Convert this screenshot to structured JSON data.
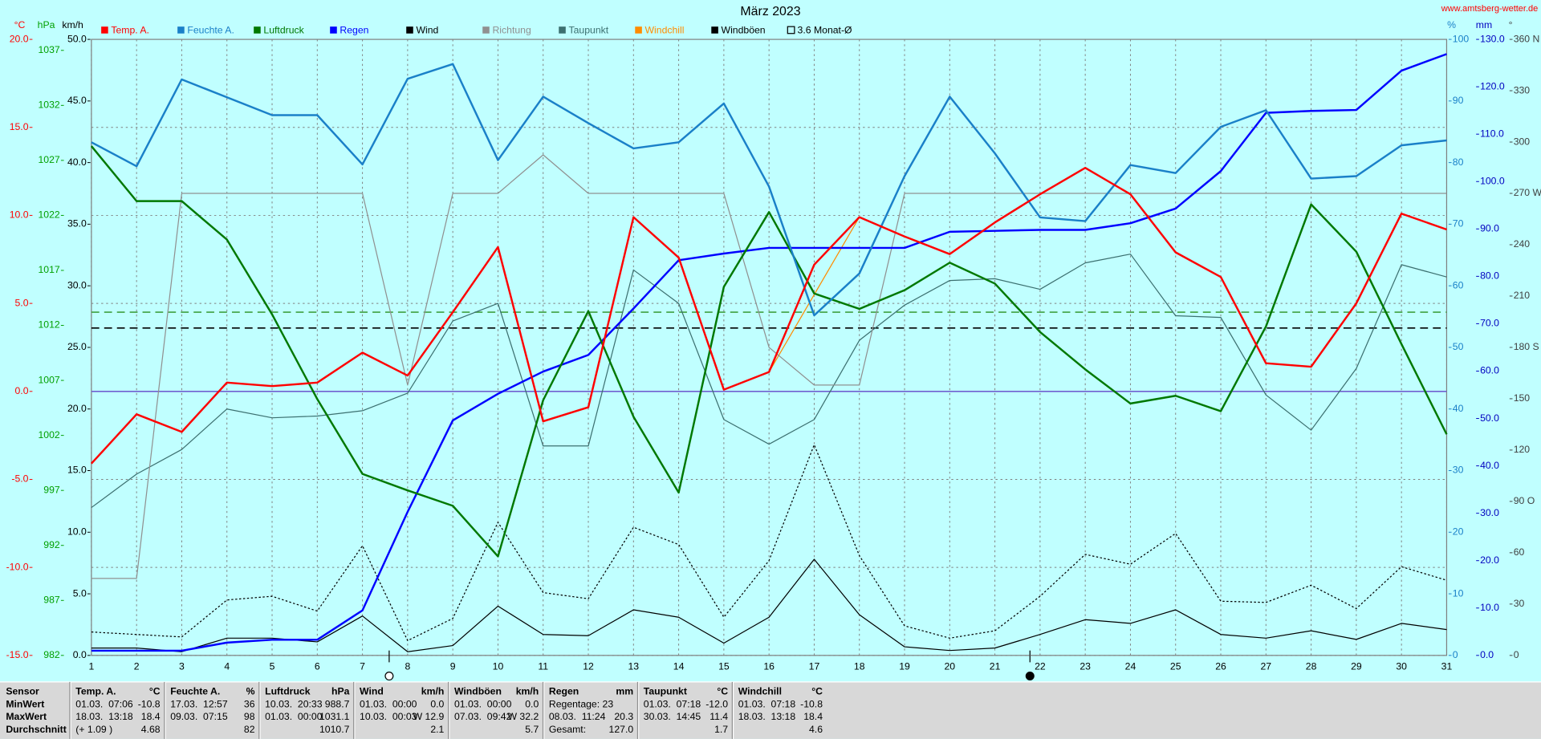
{
  "chart_data": {
    "type": "line",
    "title": "März 2023",
    "source": "www.amtsberg-wetter.de",
    "x": [
      1,
      2,
      3,
      4,
      5,
      6,
      7,
      8,
      9,
      10,
      11,
      12,
      13,
      14,
      15,
      16,
      17,
      18,
      19,
      20,
      21,
      22,
      23,
      24,
      25,
      26,
      27,
      28,
      29,
      30,
      31
    ],
    "xlim": [
      1,
      31
    ],
    "grid": true,
    "axes": [
      {
        "unit": "°C",
        "color": "#ff0000",
        "lim": [
          -15,
          20
        ],
        "ticks": [
          {
            "value": -15,
            "label": "-15.0"
          },
          {
            "value": -10,
            "label": "-10.0"
          },
          {
            "value": -5,
            "label": "-5.0"
          },
          {
            "value": 0,
            "label": "0.0"
          },
          {
            "value": 5,
            "label": "5.0"
          },
          {
            "value": 10,
            "label": "10.0"
          },
          {
            "value": 15,
            "label": "15.0"
          },
          {
            "value": 20,
            "label": "20.0"
          }
        ]
      },
      {
        "unit": "hPa",
        "color": "#00a000",
        "lim": [
          982,
          1038
        ],
        "ticks": [
          982,
          987,
          992,
          997,
          1002,
          1007,
          1012,
          1017,
          1022,
          1027,
          1032,
          1037
        ]
      },
      {
        "unit": "km/h",
        "color": "#000000",
        "lim": [
          0,
          50
        ],
        "ticks": [
          {
            "value": 0,
            "label": "0.0"
          },
          {
            "value": 5,
            "label": "5.0"
          },
          {
            "value": 10,
            "label": "10.0"
          },
          {
            "value": 15,
            "label": "15.0"
          },
          {
            "value": 20,
            "label": "20.0"
          },
          {
            "value": 25,
            "label": "25.0"
          },
          {
            "value": 30,
            "label": "30.0"
          },
          {
            "value": 35,
            "label": "35.0"
          },
          {
            "value": 40,
            "label": "40.0"
          },
          {
            "value": 45,
            "label": "45.0"
          },
          {
            "value": 50,
            "label": "50.0"
          }
        ]
      },
      {
        "unit": "%",
        "color": "#1a80c8",
        "lim": [
          0,
          100
        ],
        "ticks": [
          0,
          10,
          20,
          30,
          40,
          50,
          60,
          70,
          80,
          90,
          100
        ]
      },
      {
        "unit": "mm",
        "color": "#0000c0",
        "lim": [
          0,
          130
        ],
        "ticks": [
          {
            "value": 0,
            "label": "0.0"
          },
          {
            "value": 10,
            "label": "10.0"
          },
          {
            "value": 20,
            "label": "20.0"
          },
          {
            "value": 30,
            "label": "30.0"
          },
          {
            "value": 40,
            "label": "40.0"
          },
          {
            "value": 50,
            "label": "50.0"
          },
          {
            "value": 60,
            "label": "60.0"
          },
          {
            "value": 70,
            "label": "70.0"
          },
          {
            "value": 80,
            "label": "80.0"
          },
          {
            "value": 90,
            "label": "90.0"
          },
          {
            "value": 100,
            "label": "100.0"
          },
          {
            "value": 110,
            "label": "110.0"
          },
          {
            "value": 120,
            "label": "120.0"
          },
          {
            "value": 130,
            "label": "130.0"
          }
        ]
      },
      {
        "unit": "°",
        "color": "#404040",
        "lim": [
          0,
          360
        ],
        "ticks": [
          0,
          30,
          60,
          {
            "value": 90,
            "label": "90 O"
          },
          120,
          150,
          {
            "value": 180,
            "label": "180 S"
          },
          210,
          240,
          {
            "value": 270,
            "label": "270 W"
          },
          300,
          330,
          {
            "value": 360,
            "label": "360 N"
          }
        ]
      }
    ],
    "series": [
      {
        "name": "Temp. A.",
        "color": "#ff0000",
        "axis": 0,
        "values": [
          -4.1,
          -1.3,
          -2.3,
          0.5,
          0.3,
          0.5,
          2.2,
          0.9,
          4.5,
          8.2,
          -1.7,
          -0.9,
          9.9,
          7.6,
          0.1,
          1.1,
          7.2,
          9.9,
          8.8,
          7.8,
          9.6,
          11.2,
          12.7,
          11.2,
          7.9,
          6.5,
          1.6,
          1.4,
          5.0,
          10.1,
          9.2
        ]
      },
      {
        "name": "Feuchte A.",
        "color": "#1a80c8",
        "axis": 3,
        "values": [
          83.3,
          79.4,
          93.5,
          90.6,
          87.7,
          87.7,
          79.7,
          93.6,
          96.0,
          80.4,
          90.7,
          86.4,
          82.3,
          83.3,
          89.6,
          76.1,
          55.2,
          62.0,
          77.8,
          90.7,
          81.5,
          71.1,
          70.5,
          79.6,
          78.3,
          85.8,
          88.5,
          77.4,
          77.8,
          82.8,
          83.6
        ]
      },
      {
        "name": "Luftdruck",
        "color": "#007800",
        "axis": 1,
        "values": [
          1028.3,
          1023.3,
          1023.3,
          1019.8,
          1013.0,
          1005.3,
          998.5,
          997.0,
          995.6,
          991.0,
          1005.2,
          1013.3,
          1003.7,
          996.8,
          1015.5,
          1022.3,
          1014.9,
          1013.5,
          1015.2,
          1017.7,
          1015.8,
          1011.4,
          1008.0,
          1004.9,
          1005.6,
          1004.2,
          1011.9,
          1023.0,
          1018.7,
          1010.3,
          1002.1
        ]
      },
      {
        "name": "Regen",
        "color": "#0000ff",
        "axis": 4,
        "values": [
          1.0,
          1.0,
          1.0,
          2.7,
          3.3,
          3.3,
          9.5,
          30.3,
          49.6,
          55.2,
          59.9,
          63.4,
          73.2,
          83.4,
          84.8,
          86.0,
          86.0,
          86.0,
          86.0,
          89.4,
          89.6,
          89.8,
          89.8,
          91.2,
          94.3,
          102.2,
          114.5,
          114.9,
          115.1,
          123.4,
          126.9
        ]
      },
      {
        "name": "Wind",
        "color": "#000000",
        "axis": 2,
        "values": [
          0.6,
          0.6,
          0.3,
          1.4,
          1.4,
          1.1,
          3.2,
          0.3,
          0.8,
          4.0,
          1.7,
          1.6,
          3.7,
          3.1,
          1.0,
          3.1,
          7.8,
          3.3,
          0.7,
          0.4,
          0.6,
          1.7,
          2.9,
          2.6,
          3.7,
          1.7,
          1.4,
          2.0,
          1.3,
          2.6,
          2.1
        ]
      },
      {
        "name": "Richtung",
        "color": "#909090",
        "axis": 5,
        "values": [
          45,
          45,
          270,
          270,
          270,
          270,
          270,
          158,
          270,
          270,
          292.5,
          270,
          270,
          270,
          270,
          180,
          158,
          158,
          270,
          270,
          270,
          270,
          270,
          270,
          270,
          270,
          270,
          270,
          270,
          270,
          270
        ]
      },
      {
        "name": "Taupunkt",
        "color": "#3c7070",
        "axis": 0,
        "values": [
          -6.6,
          -4.7,
          -3.3,
          -1.0,
          -1.5,
          -1.4,
          -1.1,
          -0.1,
          4.0,
          5.0,
          -3.1,
          -3.1,
          6.9,
          5.0,
          -1.6,
          -3.0,
          -1.6,
          2.9,
          4.9,
          6.3,
          6.4,
          5.8,
          7.3,
          7.8,
          4.3,
          4.2,
          -0.2,
          -2.2,
          1.3,
          7.2,
          6.5
        ]
      },
      {
        "name": "Windchill",
        "color": "#ff8c00",
        "axis": 0,
        "values": [
          -4.1,
          -1.3,
          -2.3,
          0.5,
          0.3,
          0.5,
          2.2,
          0.9,
          4.5,
          8.2,
          -1.7,
          -0.9,
          9.9,
          7.6,
          0.1,
          1.1,
          5.5,
          9.9,
          8.8,
          7.8,
          9.6,
          11.2,
          12.7,
          11.2,
          7.9,
          6.5,
          1.6,
          1.4,
          5.0,
          10.1,
          9.2
        ]
      },
      {
        "name": "Windböen",
        "color": "#000000",
        "axis": 2,
        "dash": true,
        "values": [
          1.9,
          1.7,
          1.5,
          4.5,
          4.8,
          3.6,
          8.9,
          1.2,
          3.0,
          10.8,
          5.1,
          4.6,
          10.4,
          9.0,
          3.1,
          7.7,
          17.1,
          8.1,
          2.4,
          1.4,
          2.0,
          4.8,
          8.2,
          7.4,
          9.9,
          4.4,
          4.3,
          5.7,
          3.8,
          7.2,
          6.1
        ]
      }
    ],
    "reference_lines": [
      {
        "axis": 0,
        "value": 0,
        "color": "#7060d0"
      },
      {
        "axis": 0,
        "value": 4.5,
        "color": "#40a040",
        "dash": true
      },
      {
        "axis": 0,
        "value": 3.6,
        "color": "#000000",
        "dash": true,
        "name": "3.6 Monat-Ø"
      }
    ]
  },
  "table": {
    "row_labels": [
      "Sensor",
      "MinWert",
      "MaxWert",
      "Durchschnitt"
    ],
    "columns": [
      {
        "name": "Temp. A.",
        "unit": "°C",
        "min": {
          "text": "01.03.  07:06",
          "value": "-10.8"
        },
        "max": {
          "text": "18.03.  13:18",
          "value": "18.4"
        },
        "avg": {
          "text": "(+ 1.09 )",
          "value": "4.68"
        }
      },
      {
        "name": "Feuchte A.",
        "unit": "%",
        "min": {
          "text": "17.03.  12:57",
          "value": "36"
        },
        "max": {
          "text": "09.03.  07:15",
          "value": "98"
        },
        "avg": {
          "value": "82"
        }
      },
      {
        "name": "Luftdruck",
        "unit": "hPa",
        "min": {
          "text": "10.03.  20:33",
          "value": "988.7"
        },
        "max": {
          "text": "01.03.  00:00",
          "value": "1031.1"
        },
        "avg": {
          "value": "1010.7"
        }
      },
      {
        "name": "Wind",
        "unit": "km/h",
        "min": {
          "text": "01.03.  00:00",
          "value": "0.0"
        },
        "max": {
          "text": "10.03.  00:03",
          "value": "W 12.9"
        },
        "avg": {
          "value": "2.1"
        }
      },
      {
        "name": "Windböen",
        "unit": "km/h",
        "min": {
          "text": "01.03.  00:00",
          "value": "0.0"
        },
        "max": {
          "text": "07.03.  09:42",
          "value": "W 32.2"
        },
        "avg": {
          "value": "5.7"
        }
      },
      {
        "name": "Regen",
        "unit": "mm",
        "min": {
          "text": "Regentage: 23"
        },
        "max": {
          "text": "08.03.  11:24",
          "value": "20.3"
        },
        "avg": {
          "text": "Gesamt:",
          "value": "127.0"
        }
      },
      {
        "name": "Taupunkt",
        "unit": "°C",
        "min": {
          "text": "01.03.  07:18",
          "value": "-12.0"
        },
        "max": {
          "text": "30.03.  14:45",
          "value": "11.4"
        },
        "avg": {
          "value": "1.7"
        }
      },
      {
        "name": "Windchill",
        "unit": "°C",
        "min": {
          "text": "01.03.  07:18",
          "value": "-10.8"
        },
        "max": {
          "text": "18.03.  13:18",
          "value": "18.4"
        },
        "avg": {
          "value": "4.6"
        }
      }
    ]
  }
}
